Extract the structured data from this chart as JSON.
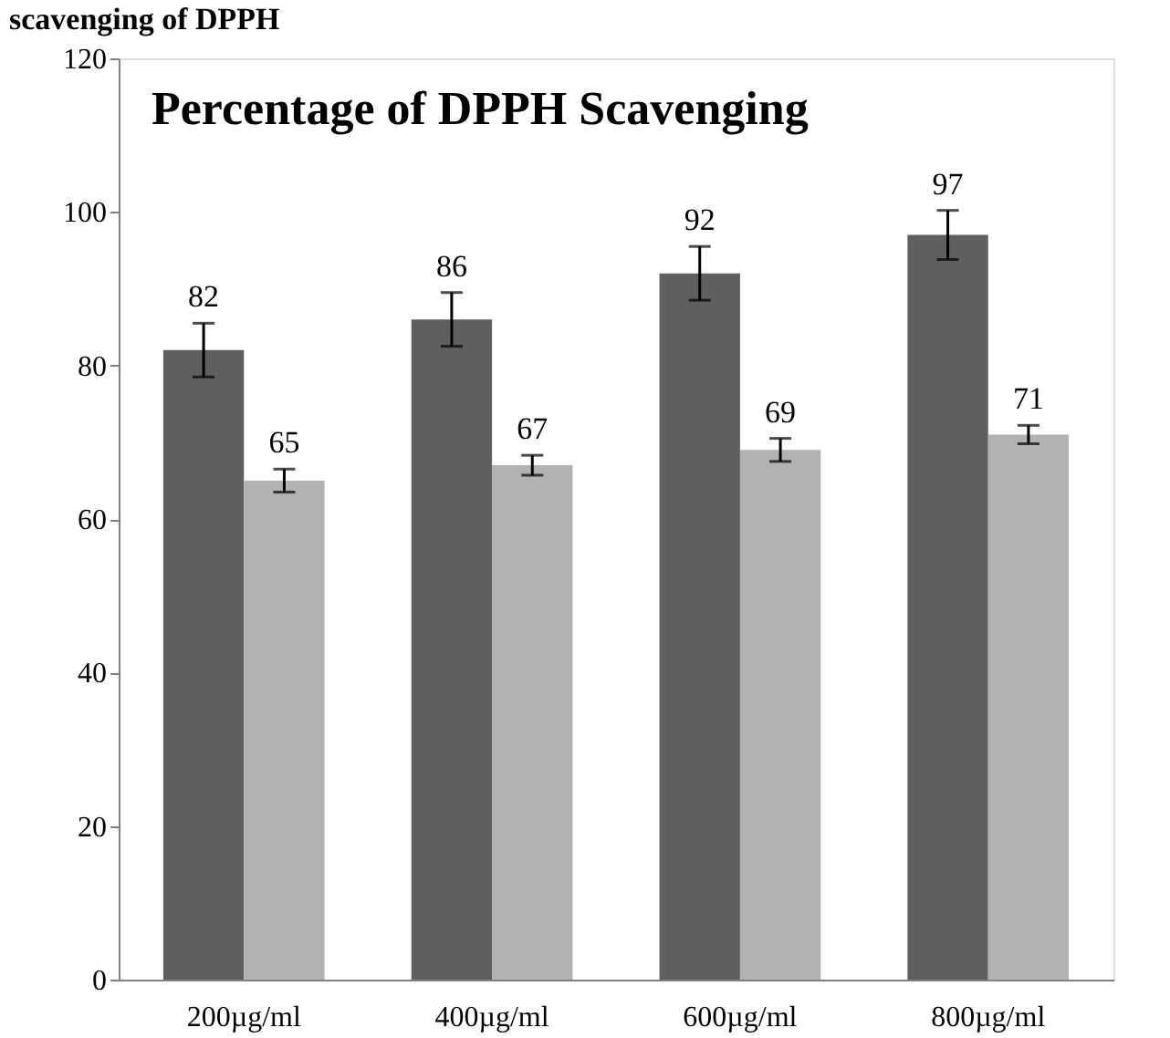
{
  "chart_data": {
    "type": "bar",
    "title": "Percentage of DPPH Scavenging",
    "annotations": [
      "scavenging of DPPH"
    ],
    "categories": [
      "200µg/ml",
      "400µg/ml",
      "600µg/ml",
      "800µg/ml"
    ],
    "series": [
      {
        "color": "#5f5f5f",
        "values": [
          82,
          86,
          92,
          97
        ],
        "errors": [
          3.5,
          3.5,
          3.5,
          3.2
        ]
      },
      {
        "color": "#b2b2b2",
        "values": [
          65,
          67,
          69,
          71
        ],
        "errors": [
          1.5,
          1.3,
          1.5,
          1.2
        ]
      }
    ],
    "ylim": [
      0,
      120
    ],
    "yticks": [
      0,
      20,
      40,
      60,
      80,
      100,
      120
    ],
    "data_labels": true,
    "grid": false,
    "legend": false
  }
}
